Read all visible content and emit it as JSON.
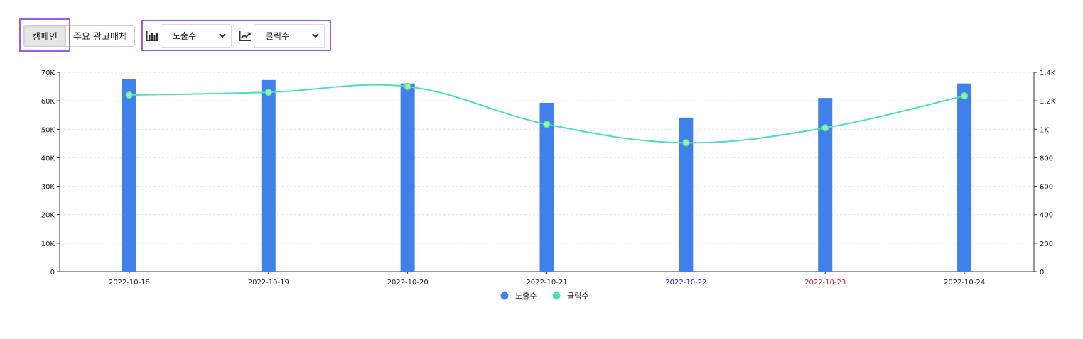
{
  "toolbar": {
    "tabs": [
      {
        "label": "캠페인",
        "active": true
      },
      {
        "label": "주요 광고매체",
        "active": false
      }
    ],
    "bar_metric": {
      "icon": "bar-chart-icon",
      "value": "노출수"
    },
    "line_metric": {
      "icon": "line-chart-icon",
      "value": "클릭수"
    }
  },
  "colors": {
    "bar": "#3f80ea",
    "line": "#4fdcc0",
    "point_fill": "#a6f28a",
    "highlight": "#9a5cf0",
    "saturday": "#1a1ae6",
    "sunday": "#e61a1a"
  },
  "chart_data": {
    "type": "bar+line",
    "categories": [
      "2022-10-18",
      "2022-10-19",
      "2022-10-20",
      "2022-10-21",
      "2022-10-22",
      "2022-10-23",
      "2022-10-24"
    ],
    "category_colors": [
      "#222222",
      "#222222",
      "#222222",
      "#222222",
      "#1a1ae6",
      "#e61a1a",
      "#222222"
    ],
    "series": [
      {
        "name": "노출수",
        "type": "bar",
        "axis": "left",
        "values": [
          67500,
          67300,
          66100,
          59300,
          54100,
          61000,
          66100
        ]
      },
      {
        "name": "클릭수",
        "type": "line",
        "axis": "right",
        "values": [
          1240,
          1260,
          1300,
          1035,
          905,
          1010,
          1235
        ]
      }
    ],
    "y_left": {
      "min": 0,
      "max": 70000,
      "ticks": [
        "0",
        "10K",
        "20K",
        "30K",
        "40K",
        "50K",
        "60K",
        "70K"
      ]
    },
    "y_right": {
      "min": 0,
      "max": 1400,
      "ticks": [
        "0",
        "200",
        "400",
        "600",
        "800",
        "1K",
        "1.2K",
        "1.4K"
      ]
    },
    "grid": true,
    "legend_position": "bottom-center"
  }
}
